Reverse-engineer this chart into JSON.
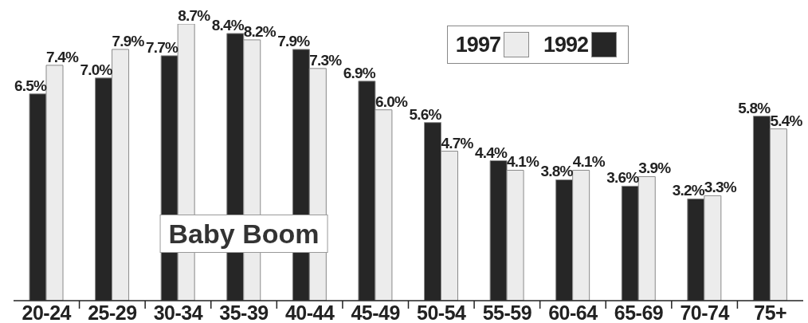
{
  "chart_data": {
    "type": "bar",
    "categories": [
      "20-24",
      "25-29",
      "30-34",
      "35-39",
      "40-44",
      "45-49",
      "50-54",
      "55-59",
      "60-64",
      "65-69",
      "70-74",
      "75+"
    ],
    "series": [
      {
        "name": "1992",
        "color": "#262626",
        "values": [
          6.5,
          7.0,
          7.7,
          8.4,
          7.9,
          6.9,
          5.6,
          4.4,
          3.8,
          3.6,
          3.2,
          5.8
        ],
        "value_labels": [
          "6.5%",
          "7.0%",
          "7.7%",
          "8.4%",
          "7.9%",
          "6.9%",
          "5.6%",
          "4.4%",
          "3.8%",
          "3.6%",
          "3.2%",
          "5.8%"
        ]
      },
      {
        "name": "1997",
        "color": "#ececec",
        "values": [
          7.4,
          7.9,
          8.7,
          8.2,
          7.3,
          6.0,
          4.7,
          4.1,
          4.1,
          3.9,
          3.3,
          5.4
        ],
        "value_labels": [
          "7.4%",
          "7.9%",
          "8.7%",
          "8.2%",
          "7.3%",
          "6.0%",
          "4.7%",
          "4.1%",
          "4.1%",
          "3.9%",
          "3.3%",
          "5.4%"
        ]
      }
    ],
    "tick_labels": "x",
    "legend": "top right",
    "annotations": [
      {
        "text": "Baby Boom",
        "x": "35-39",
        "y": 2.1
      }
    ]
  }
}
